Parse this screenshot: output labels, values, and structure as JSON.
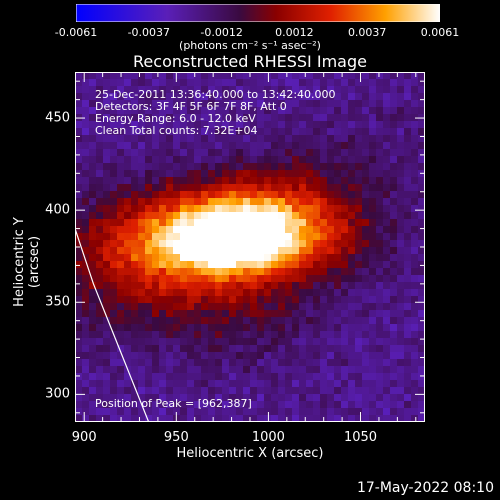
{
  "colorbar": {
    "ticks": [
      "-0.0061",
      "-0.0037",
      "-0.0012",
      "0.0012",
      "0.0037",
      "0.0061"
    ],
    "units": "(photons cm⁻² s⁻¹ asec⁻²)",
    "vmin": -0.0061,
    "vmax": 0.0061
  },
  "annotation": {
    "time": "25-Dec-2011 13:36:40.000 to 13:42:40.000",
    "detectors": "Detectors: 3F 4F 5F 6F 7F 8F, Att 0",
    "energy": "Energy Range: 6.0 - 12.0 keV",
    "clean": "Clean     Total counts: 7.32E+04",
    "peak": "Position of Peak = [962,387]"
  },
  "footer": "17-May-2022 08:10",
  "chart_data": {
    "type": "heatmap",
    "title": "Reconstructed RHESSI Image",
    "xlabel": "Heliocentric X (arcsec)",
    "ylabel": "Heliocentric Y (arcsec)",
    "xlim": [
      895,
      1085
    ],
    "ylim": [
      285,
      475
    ],
    "xticks": [
      "900",
      "950",
      "1000",
      "1050"
    ],
    "yticks": [
      "300",
      "350",
      "400",
      "450"
    ],
    "xtick_values": [
      900,
      950,
      1000,
      1050
    ],
    "ytick_values": [
      300,
      350,
      400,
      450
    ],
    "limb_curve": [
      [
        895,
        390
      ],
      [
        905,
        360
      ],
      [
        915,
        335
      ],
      [
        925,
        310
      ],
      [
        935,
        285
      ]
    ],
    "sources": [
      {
        "x": 962,
        "y": 387,
        "sx": 60,
        "sy": 25,
        "amp": 0.0045
      },
      {
        "x": 985,
        "y": 385,
        "sx": 30,
        "sy": 18,
        "amp": 0.004
      },
      {
        "x": 1020,
        "y": 390,
        "sx": 40,
        "sy": 25,
        "amp": 0.0028
      },
      {
        "x": 975,
        "y": 355,
        "sx": 50,
        "sy": 35,
        "amp": 0.002
      }
    ]
  }
}
